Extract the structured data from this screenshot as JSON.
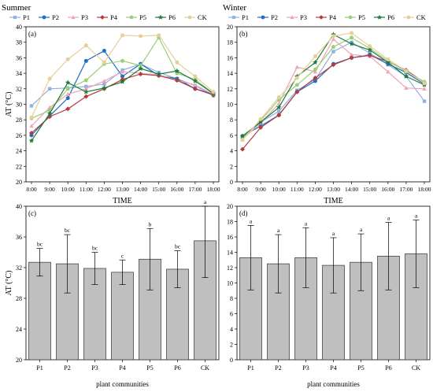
{
  "chart_data": [
    {
      "type": "line",
      "season": "Summer",
      "panel_label": "(a)",
      "xlabel": "TIME",
      "ylabel": "AT (°C)",
      "ylim": [
        20,
        40
      ],
      "yticks": [
        20,
        22,
        24,
        26,
        28,
        30,
        32,
        34,
        36,
        38,
        40
      ],
      "x": [
        "8:00",
        "9:00",
        "10:00",
        "11:00",
        "12:00",
        "13:00",
        "14:00",
        "15:00",
        "16:00",
        "17:00",
        "18:00"
      ],
      "legend": "top",
      "series": [
        {
          "name": "P1",
          "color": "#8fb2e3",
          "marker": "square",
          "values": [
            29.8,
            32.0,
            32.1,
            32.3,
            32.6,
            34.4,
            35.2,
            34.1,
            33.3,
            32.4,
            31.1
          ]
        },
        {
          "name": "P2",
          "color": "#1f6fc4",
          "marker": "circle",
          "values": [
            26.0,
            28.5,
            30.8,
            35.6,
            36.9,
            33.6,
            35.2,
            33.7,
            33.3,
            32.0,
            31.3
          ]
        },
        {
          "name": "P3",
          "color": "#f0a3b6",
          "marker": "triangle",
          "values": [
            27.2,
            29.6,
            31.3,
            32.0,
            33.0,
            34.2,
            34.0,
            33.8,
            33.1,
            32.5,
            31.3
          ]
        },
        {
          "name": "P4",
          "color": "#b23d3d",
          "marker": "diamond",
          "values": [
            26.3,
            28.4,
            29.4,
            31.0,
            32.0,
            33.2,
            33.9,
            33.7,
            33.1,
            32.0,
            31.2
          ]
        },
        {
          "name": "P5",
          "color": "#98cf7a",
          "marker": "pentagon",
          "values": [
            28.2,
            29.2,
            32.0,
            33.1,
            35.2,
            35.6,
            35.0,
            38.6,
            34.0,
            33.2,
            31.4
          ]
        },
        {
          "name": "P6",
          "color": "#1f7a3c",
          "marker": "star",
          "values": [
            25.3,
            28.8,
            32.8,
            31.6,
            32.1,
            32.9,
            34.6,
            33.9,
            34.3,
            33.0,
            31.4
          ]
        },
        {
          "name": "CK",
          "color": "#e7cf9a",
          "marker": "circle",
          "values": [
            28.3,
            33.3,
            35.8,
            37.6,
            35.4,
            38.9,
            38.8,
            38.9,
            35.4,
            33.6,
            31.6
          ]
        }
      ]
    },
    {
      "type": "line",
      "season": "Winter",
      "panel_label": "(b)",
      "xlabel": "TIME",
      "ylabel": "",
      "ylim": [
        0,
        20
      ],
      "yticks": [
        0,
        2,
        4,
        6,
        8,
        10,
        12,
        14,
        16,
        18,
        20
      ],
      "x": [
        "8:00",
        "9:00",
        "10:00",
        "11:00",
        "12:00",
        "13:00",
        "14:00",
        "15:00",
        "16:00",
        "17:00",
        "18:00"
      ],
      "legend": "top",
      "series": [
        {
          "name": "P1",
          "color": "#8fb2e3",
          "marker": "square",
          "values": [
            5.8,
            7.7,
            9.1,
            11.8,
            13.2,
            16.8,
            18.0,
            16.6,
            15.1,
            13.6,
            10.4
          ]
        },
        {
          "name": "P2",
          "color": "#1f6fc4",
          "marker": "circle",
          "values": [
            5.9,
            7.2,
            8.6,
            11.6,
            13.0,
            15.2,
            16.0,
            16.4,
            15.2,
            14.1,
            12.6
          ]
        },
        {
          "name": "P3",
          "color": "#f0a3b6",
          "marker": "triangle",
          "values": [
            5.5,
            7.6,
            10.1,
            14.8,
            14.2,
            18.4,
            16.4,
            16.2,
            14.2,
            12.1,
            12.0
          ]
        },
        {
          "name": "P4",
          "color": "#b23d3d",
          "marker": "diamond",
          "values": [
            4.2,
            7.0,
            8.6,
            11.6,
            13.4,
            15.1,
            16.0,
            16.3,
            15.5,
            14.4,
            12.8
          ]
        },
        {
          "name": "P5",
          "color": "#98cf7a",
          "marker": "pentagon",
          "values": [
            5.6,
            7.9,
            10.6,
            12.5,
            14.5,
            17.4,
            18.6,
            17.2,
            15.6,
            14.2,
            12.9
          ]
        },
        {
          "name": "P6",
          "color": "#1f7a3c",
          "marker": "star",
          "values": [
            5.9,
            7.7,
            9.6,
            13.6,
            15.4,
            19.0,
            17.8,
            17.0,
            15.4,
            13.6,
            12.5
          ]
        },
        {
          "name": "CK",
          "color": "#e7cf9a",
          "marker": "circle",
          "values": [
            5.4,
            8.1,
            10.9,
            13.4,
            16.2,
            18.8,
            19.2,
            17.5,
            15.8,
            14.3,
            12.7
          ]
        }
      ]
    },
    {
      "type": "bar",
      "panel_label": "(c)",
      "xlabel": "plant communities",
      "ylabel": "AT (°C)",
      "ylim": [
        20,
        40
      ],
      "yticks": [
        20,
        24,
        28,
        32,
        36,
        40
      ],
      "categories": [
        "P1",
        "P2",
        "P3",
        "P4",
        "P5",
        "P6",
        "CK"
      ],
      "values": [
        32.7,
        32.5,
        31.9,
        31.4,
        33.1,
        31.8,
        35.5
      ],
      "errors": [
        1.8,
        3.8,
        2.1,
        1.6,
        4.0,
        2.4,
        4.8
      ],
      "letters": [
        "bc",
        "bc",
        "bc",
        "c",
        "b",
        "bc",
        "a"
      ],
      "bar_color": "#bfbfbf"
    },
    {
      "type": "bar",
      "panel_label": "(d)",
      "xlabel": "plant communities",
      "ylabel": "",
      "ylim": [
        0,
        20
      ],
      "yticks": [
        0,
        2,
        4,
        6,
        8,
        10,
        12,
        14,
        16,
        18,
        20
      ],
      "categories": [
        "P1",
        "P2",
        "P3",
        "P4",
        "P5",
        "P6",
        "CK"
      ],
      "values": [
        13.3,
        12.5,
        13.3,
        12.3,
        12.7,
        13.5,
        13.8
      ],
      "errors": [
        4.2,
        3.8,
        3.9,
        3.6,
        3.7,
        4.4,
        4.4
      ],
      "letters": [
        "a",
        "a",
        "a",
        "a",
        "a",
        "a",
        "a"
      ],
      "bar_color": "#bfbfbf"
    }
  ]
}
